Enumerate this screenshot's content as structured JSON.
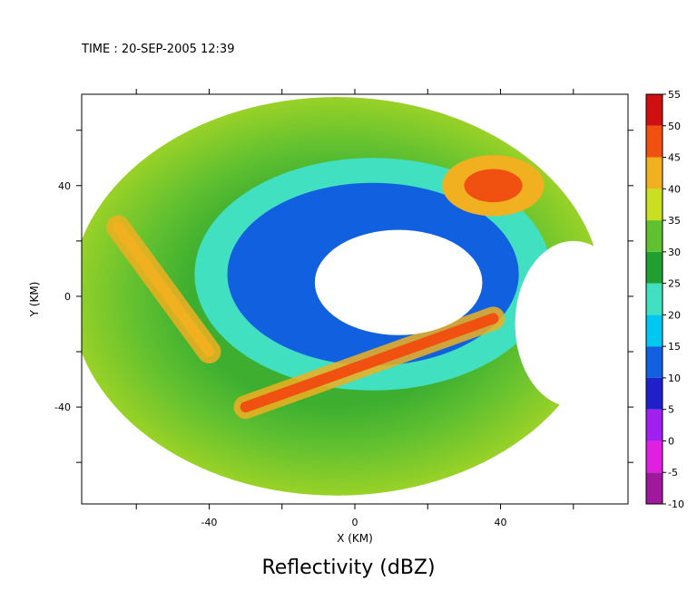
{
  "header": {
    "time_label": "TIME : 20-SEP-2005 12:39"
  },
  "chart_data": {
    "type": "heatmap",
    "title": "Reflectivity (dBZ)",
    "xlabel": "X (KM)",
    "ylabel": "Y (KM)",
    "xlim": [
      -75,
      75
    ],
    "ylim": [
      -75,
      73
    ],
    "x_ticks": [
      -40,
      0,
      40
    ],
    "y_ticks": [
      40,
      0,
      -40
    ],
    "x_tick_labels": [
      "-40",
      "0",
      "40"
    ],
    "y_tick_labels": [
      "40",
      "0",
      "-40"
    ],
    "x_minor_ticks": [
      -60,
      -40,
      -20,
      0,
      20,
      40,
      60
    ],
    "y_minor_ticks": [
      60,
      40,
      20,
      0,
      -20,
      -40,
      -60
    ],
    "colorbar": {
      "levels": [
        -10,
        -5,
        0,
        5,
        10,
        15,
        20,
        25,
        30,
        35,
        40,
        45,
        50,
        55
      ],
      "level_labels": [
        "-10",
        "-5",
        "0",
        "5",
        "10",
        "15",
        "20",
        "25",
        "30",
        "35",
        "40",
        "45",
        "50",
        "55"
      ],
      "colors": [
        "#6a0f5e",
        "#a0189e",
        "#e020e0",
        "#a020f0",
        "#2020c8",
        "#1060e0",
        "#00c8f0",
        "#40e0c0",
        "#20a030",
        "#60c030",
        "#c8e020",
        "#f0b020",
        "#f05010",
        "#d01010",
        "#700808"
      ]
    },
    "features": [
      {
        "name": "radar domain",
        "center_x": -5,
        "center_y": 0,
        "radius_x": 73,
        "radius_y": 72,
        "value": 31
      },
      {
        "name": "eye (no echo)",
        "center_x": 12,
        "center_y": 5,
        "radius_x": 23,
        "radius_y": 19,
        "value": null
      },
      {
        "name": "eyewall inner band",
        "center_x": 5,
        "center_y": 8,
        "radius_x": 40,
        "radius_y": 33,
        "value": 13
      },
      {
        "name": "southern rainband",
        "from": [
          -30,
          -40
        ],
        "to": [
          38,
          -8
        ],
        "value": 47
      },
      {
        "name": "western rainband",
        "from": [
          -65,
          25
        ],
        "to": [
          -40,
          -20
        ],
        "value": 44
      },
      {
        "name": "northeast maximum",
        "center_x": 38,
        "center_y": 40,
        "radius_x": 8,
        "radius_y": 6,
        "value": 45
      },
      {
        "name": "east data gap",
        "center_x": 60,
        "center_y": -10,
        "radius_x": 16,
        "radius_y": 30,
        "value": null
      }
    ]
  }
}
